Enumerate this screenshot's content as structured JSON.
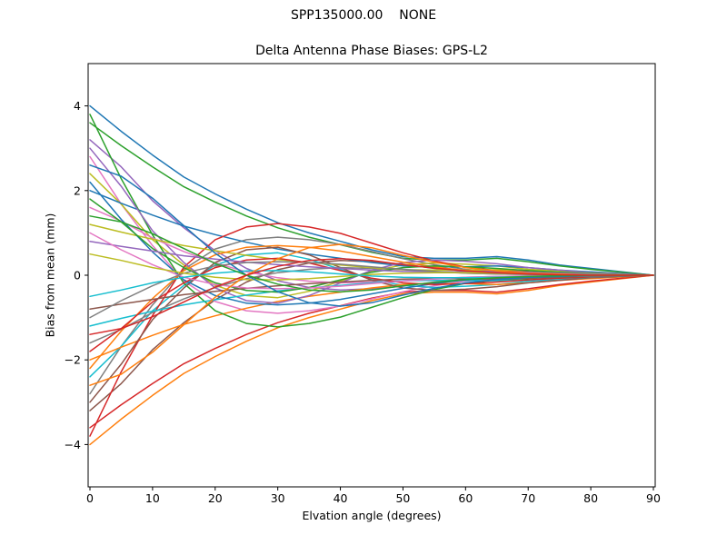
{
  "figure": {
    "suptitle": "SPP135000.00    NONE",
    "background": "#ffffff"
  },
  "chart_data": {
    "type": "line",
    "title": "Delta Antenna Phase Biases: GPS-L2",
    "xlabel": "Elvation angle (degrees)",
    "ylabel": "Bias from mean (mm)",
    "xlim": [
      0,
      90
    ],
    "ylim": [
      -5,
      5
    ],
    "x_ticks": [
      0,
      10,
      20,
      30,
      40,
      50,
      60,
      70,
      80,
      90
    ],
    "y_ticks": [
      -4,
      -2,
      0,
      2,
      4
    ],
    "grid": false,
    "legend": "none",
    "line_width": 1.5,
    "x": [
      0,
      5,
      10,
      15,
      20,
      25,
      30,
      35,
      40,
      45,
      50,
      55,
      60,
      65,
      70,
      75,
      80,
      85,
      90
    ],
    "series": [
      {
        "color": "#1f77b4",
        "values": [
          4.0,
          3.4,
          2.84,
          2.32,
          1.92,
          1.56,
          1.24,
          1.0,
          0.8,
          0.6,
          0.44,
          0.4,
          0.4,
          0.44,
          0.36,
          0.24,
          0.16,
          0.08,
          0.0
        ]
      },
      {
        "color": "#ff7f0e",
        "values": [
          -4.0,
          -3.4,
          -2.84,
          -2.32,
          -1.92,
          -1.56,
          -1.24,
          -1.0,
          -0.8,
          -0.6,
          -0.44,
          -0.4,
          -0.4,
          -0.44,
          -0.36,
          -0.24,
          -0.16,
          -0.08,
          0.0
        ]
      },
      {
        "color": "#2ca02c",
        "values": [
          3.6,
          3.06,
          2.56,
          2.09,
          1.73,
          1.4,
          1.12,
          0.9,
          0.72,
          0.54,
          0.4,
          0.36,
          0.36,
          0.4,
          0.32,
          0.22,
          0.14,
          0.07,
          0.0
        ]
      },
      {
        "color": "#d62728",
        "values": [
          -3.6,
          -3.06,
          -2.56,
          -2.09,
          -1.73,
          -1.4,
          -1.12,
          -0.9,
          -0.72,
          -0.54,
          -0.4,
          -0.36,
          -0.36,
          -0.4,
          -0.32,
          -0.22,
          -0.14,
          -0.07,
          0.0
        ]
      },
      {
        "color": "#9467bd",
        "values": [
          3.2,
          2.56,
          1.76,
          1.12,
          0.58,
          0.16,
          -0.13,
          -0.29,
          -0.35,
          -0.32,
          -0.26,
          -0.16,
          -0.1,
          -0.06,
          -0.03,
          -0.03,
          0.0,
          0.0,
          0.0
        ]
      },
      {
        "color": "#8c564b",
        "values": [
          -3.2,
          -2.56,
          -1.76,
          -1.12,
          -0.58,
          -0.16,
          0.13,
          0.29,
          0.35,
          0.32,
          0.26,
          0.16,
          0.1,
          0.06,
          0.03,
          0.03,
          0.0,
          0.0,
          0.0
        ]
      },
      {
        "color": "#e377c2",
        "values": [
          2.8,
          1.68,
          0.7,
          -0.14,
          -0.62,
          -0.84,
          -0.9,
          -0.84,
          -0.73,
          -0.56,
          -0.39,
          -0.25,
          -0.14,
          -0.08,
          -0.06,
          -0.03,
          0.0,
          0.0,
          0.0
        ]
      },
      {
        "color": "#7f7f7f",
        "values": [
          -2.8,
          -1.68,
          -0.7,
          0.14,
          0.62,
          0.84,
          0.9,
          0.84,
          0.73,
          0.56,
          0.39,
          0.25,
          0.14,
          0.08,
          0.06,
          0.03,
          0.0,
          0.0,
          0.0
        ]
      },
      {
        "color": "#bcbd22",
        "values": [
          2.4,
          1.68,
          0.84,
          0.24,
          -0.24,
          -0.48,
          -0.53,
          -0.38,
          -0.14,
          0.1,
          0.24,
          0.29,
          0.26,
          0.22,
          0.14,
          0.1,
          0.05,
          0.02,
          0.0
        ]
      },
      {
        "color": "#17becf",
        "values": [
          -2.4,
          -1.68,
          -0.84,
          -0.24,
          0.24,
          0.48,
          0.53,
          0.38,
          0.14,
          -0.1,
          -0.24,
          -0.29,
          -0.26,
          -0.22,
          -0.14,
          -0.1,
          -0.05,
          -0.02,
          0.0
        ]
      },
      {
        "color": "#1f77b4",
        "values": [
          2.0,
          1.7,
          1.42,
          1.16,
          0.96,
          0.78,
          0.62,
          0.5,
          0.4,
          0.3,
          0.22,
          0.2,
          0.2,
          0.22,
          0.18,
          0.12,
          0.08,
          0.04,
          0.0
        ]
      },
      {
        "color": "#ff7f0e",
        "values": [
          -2.0,
          -1.7,
          -1.42,
          -1.16,
          -0.96,
          -0.78,
          -0.62,
          -0.5,
          -0.4,
          -0.3,
          -0.22,
          -0.2,
          -0.2,
          -0.22,
          -0.18,
          -0.12,
          -0.08,
          -0.04,
          0.0
        ]
      },
      {
        "color": "#2ca02c",
        "values": [
          3.8,
          2.28,
          0.95,
          -0.19,
          -0.84,
          -1.14,
          -1.22,
          -1.14,
          -0.99,
          -0.76,
          -0.53,
          -0.34,
          -0.19,
          -0.11,
          -0.08,
          -0.04,
          0.0,
          0.0,
          0.0
        ]
      },
      {
        "color": "#d62728",
        "values": [
          -3.8,
          -2.28,
          -0.95,
          0.19,
          0.84,
          1.14,
          1.22,
          1.14,
          0.99,
          0.76,
          0.53,
          0.34,
          0.19,
          0.11,
          0.08,
          0.04,
          0.0,
          0.0,
          0.0
        ]
      },
      {
        "color": "#9467bd",
        "values": [
          3.0,
          2.1,
          1.05,
          0.3,
          -0.3,
          -0.6,
          -0.66,
          -0.48,
          -0.18,
          0.12,
          0.3,
          0.36,
          0.33,
          0.27,
          0.18,
          0.12,
          0.06,
          0.03,
          0.0
        ]
      },
      {
        "color": "#8c564b",
        "values": [
          -3.0,
          -2.1,
          -1.05,
          -0.3,
          0.3,
          0.6,
          0.66,
          0.48,
          0.18,
          -0.12,
          -0.3,
          -0.36,
          -0.33,
          -0.27,
          -0.18,
          -0.12,
          -0.06,
          -0.03,
          0.0
        ]
      },
      {
        "color": "#e377c2",
        "values": [
          1.6,
          1.28,
          0.88,
          0.56,
          0.29,
          0.08,
          -0.06,
          -0.14,
          -0.18,
          -0.16,
          -0.13,
          -0.08,
          -0.05,
          -0.03,
          -0.02,
          -0.02,
          0.0,
          0.0,
          0.0
        ]
      },
      {
        "color": "#7f7f7f",
        "values": [
          -1.6,
          -1.28,
          -0.88,
          -0.56,
          -0.29,
          -0.08,
          0.06,
          0.14,
          0.18,
          0.16,
          0.13,
          0.08,
          0.05,
          0.03,
          0.02,
          0.02,
          0.0,
          0.0,
          0.0
        ]
      },
      {
        "color": "#bcbd22",
        "values": [
          1.2,
          1.02,
          0.85,
          0.7,
          0.58,
          0.47,
          0.37,
          0.3,
          0.24,
          0.18,
          0.13,
          0.12,
          0.12,
          0.13,
          0.11,
          0.07,
          0.05,
          0.02,
          0.0
        ]
      },
      {
        "color": "#17becf",
        "values": [
          -1.2,
          -1.02,
          -0.85,
          -0.7,
          -0.58,
          -0.47,
          -0.37,
          -0.3,
          -0.24,
          -0.18,
          -0.13,
          -0.12,
          -0.12,
          -0.13,
          -0.11,
          -0.07,
          -0.05,
          -0.02,
          0.0
        ]
      },
      {
        "color": "#1f77b4",
        "values": [
          2.2,
          1.32,
          0.55,
          -0.11,
          -0.48,
          -0.66,
          -0.7,
          -0.66,
          -0.57,
          -0.44,
          -0.31,
          -0.2,
          -0.11,
          -0.07,
          -0.04,
          -0.02,
          0.0,
          0.0,
          0.0
        ]
      },
      {
        "color": "#ff7f0e",
        "values": [
          -2.2,
          -1.32,
          -0.55,
          0.11,
          0.48,
          0.66,
          0.7,
          0.66,
          0.57,
          0.44,
          0.31,
          0.2,
          0.11,
          0.07,
          0.04,
          0.02,
          0.0,
          0.0,
          0.0
        ]
      },
      {
        "color": "#2ca02c",
        "values": [
          1.8,
          1.26,
          0.63,
          0.18,
          -0.18,
          -0.36,
          -0.4,
          -0.29,
          -0.11,
          0.07,
          0.18,
          0.22,
          0.2,
          0.16,
          0.11,
          0.07,
          0.04,
          0.02,
          0.0
        ]
      },
      {
        "color": "#d62728",
        "values": [
          -1.8,
          -1.26,
          -0.63,
          -0.18,
          0.18,
          0.36,
          0.4,
          0.29,
          0.11,
          -0.07,
          -0.18,
          -0.22,
          -0.2,
          -0.16,
          -0.11,
          -0.07,
          -0.04,
          -0.02,
          0.0
        ]
      },
      {
        "color": "#9467bd",
        "values": [
          0.8,
          0.68,
          0.57,
          0.46,
          0.38,
          0.31,
          0.25,
          0.2,
          0.16,
          0.12,
          0.09,
          0.08,
          0.08,
          0.09,
          0.07,
          0.05,
          0.03,
          0.02,
          0.0
        ]
      },
      {
        "color": "#8c564b",
        "values": [
          -0.8,
          -0.68,
          -0.57,
          -0.46,
          -0.38,
          -0.31,
          -0.25,
          -0.2,
          -0.16,
          -0.12,
          -0.09,
          -0.08,
          -0.08,
          -0.09,
          -0.07,
          -0.05,
          -0.03,
          -0.02,
          0.0
        ]
      },
      {
        "color": "#e377c2",
        "values": [
          1.0,
          0.6,
          0.25,
          -0.05,
          -0.22,
          -0.3,
          -0.32,
          -0.3,
          -0.26,
          -0.2,
          -0.14,
          -0.09,
          -0.05,
          -0.03,
          -0.02,
          -0.01,
          0.0,
          0.0,
          0.0
        ]
      },
      {
        "color": "#7f7f7f",
        "values": [
          -1.0,
          -0.6,
          -0.25,
          0.05,
          0.22,
          0.3,
          0.32,
          0.3,
          0.26,
          0.2,
          0.14,
          0.09,
          0.05,
          0.03,
          0.02,
          0.01,
          0.0,
          0.0,
          0.0
        ]
      },
      {
        "color": "#bcbd22",
        "values": [
          0.5,
          0.35,
          0.18,
          0.05,
          -0.05,
          -0.1,
          -0.11,
          -0.08,
          -0.03,
          0.02,
          0.05,
          0.06,
          0.06,
          0.05,
          0.03,
          0.02,
          0.01,
          0.01,
          0.0
        ]
      },
      {
        "color": "#17becf",
        "values": [
          -0.5,
          -0.35,
          -0.18,
          -0.05,
          0.05,
          0.1,
          0.11,
          0.08,
          0.03,
          -0.02,
          -0.05,
          -0.06,
          -0.06,
          -0.05,
          -0.03,
          -0.02,
          -0.01,
          -0.01,
          0.0
        ]
      },
      {
        "color": "#1f77b4",
        "values": [
          2.6,
          2.34,
          1.82,
          1.17,
          0.52,
          0.0,
          -0.39,
          -0.65,
          -0.73,
          -0.65,
          -0.47,
          -0.31,
          -0.18,
          -0.1,
          -0.05,
          -0.03,
          0.0,
          0.0,
          0.0
        ]
      },
      {
        "color": "#ff7f0e",
        "values": [
          -2.6,
          -2.34,
          -1.82,
          -1.17,
          -0.52,
          0.0,
          0.39,
          0.65,
          0.73,
          0.65,
          0.47,
          0.31,
          0.18,
          0.1,
          0.05,
          0.03,
          0.0,
          0.0,
          0.0
        ]
      },
      {
        "color": "#2ca02c",
        "values": [
          1.4,
          1.26,
          0.98,
          0.63,
          0.28,
          0.0,
          -0.21,
          -0.35,
          -0.39,
          -0.35,
          -0.25,
          -0.17,
          -0.1,
          -0.06,
          -0.03,
          -0.01,
          0.0,
          0.0,
          0.0
        ]
      },
      {
        "color": "#d62728",
        "values": [
          -1.4,
          -1.26,
          -0.98,
          -0.63,
          -0.28,
          0.0,
          0.21,
          0.35,
          0.39,
          0.35,
          0.25,
          0.17,
          0.1,
          0.06,
          0.03,
          0.01,
          0.0,
          0.0,
          0.0
        ]
      }
    ]
  }
}
